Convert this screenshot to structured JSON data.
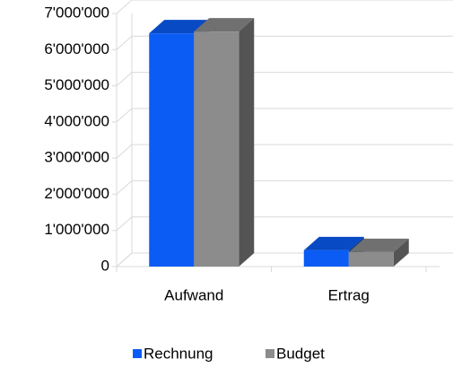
{
  "chart_data": {
    "type": "bar3d",
    "categories": [
      "Aufwand",
      "Ertrag"
    ],
    "series": [
      {
        "name": "Rechnung",
        "color": "#0a5cf5",
        "values": [
          6450000,
          450000
        ]
      },
      {
        "name": "Budget",
        "color": "#8c8c8c",
        "values": [
          6500000,
          400000
        ]
      }
    ],
    "ylim": [
      0,
      7000000
    ],
    "yticks": [
      0,
      {
        "value": 1000000,
        "label": "1'000'000"
      },
      {
        "value": 2000000,
        "label": "2'000'000"
      },
      {
        "value": 3000000,
        "label": "3'000'000"
      },
      {
        "value": 4000000,
        "label": "4'000'000"
      },
      {
        "value": 5000000,
        "label": "5'000'000"
      },
      {
        "value": 6000000,
        "label": "6'000'000"
      },
      {
        "value": 7000000,
        "label": "7'000'000"
      }
    ],
    "grid": true,
    "legend": "bottom"
  }
}
